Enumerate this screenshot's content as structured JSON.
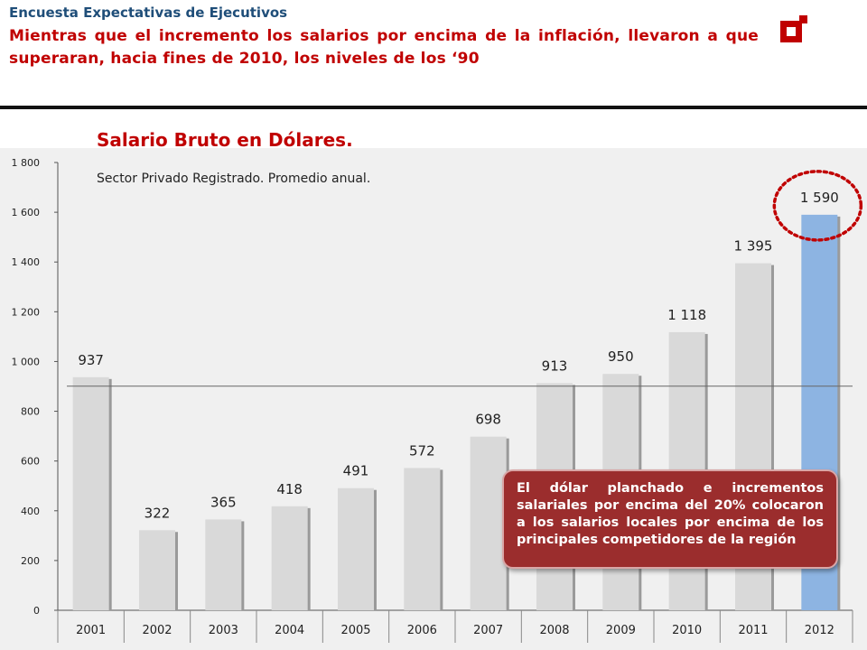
{
  "header": {
    "survey_label": "Encuesta Expectativas de Ejecutivos",
    "headline": "Mientras que el incremento los salarios por encima de la inflación, llevaron a que superaran, hacia fines de 2010, los niveles de los ‘90"
  },
  "colors": {
    "headline": "#c00000",
    "survey": "#1f4e79",
    "bar": "#d9d9d9",
    "highlight_bar": "#8db4e2",
    "circle": "#c00000",
    "callout_bg": "#9b2d2d"
  },
  "callout": {
    "text": "El dólar planchado e incrementos salariales por encima del 20% colocaron a los salarios locales por encima de los principales competidores de la región"
  },
  "chart_data": {
    "type": "bar",
    "title": "Salario Bruto en Dólares.",
    "subtitle": "Sector Privado Registrado. Promedio anual.",
    "categories": [
      "2001",
      "2002",
      "2003",
      "2004",
      "2005",
      "2006",
      "2007",
      "2008",
      "2009",
      "2010",
      "2011",
      "2012"
    ],
    "values": [
      937,
      322,
      365,
      418,
      491,
      572,
      698,
      913,
      950,
      1118,
      1395,
      1590
    ],
    "value_labels": [
      "937",
      "322",
      "365",
      "418",
      "491",
      "572",
      "698",
      "913",
      "950",
      "1 118",
      "1 395",
      "1 590"
    ],
    "ylim": [
      0,
      1800
    ],
    "yticks": [
      0,
      200,
      400,
      600,
      800,
      1000,
      1200,
      1400,
      1600,
      1800
    ],
    "ytick_labels": [
      "0",
      "200",
      "400",
      "600",
      "800",
      "1 000",
      "1 200",
      "1 400",
      "1 600",
      "1 800"
    ],
    "reference_line": 937,
    "highlight_category": "2012",
    "grid": false,
    "legend": "none"
  }
}
